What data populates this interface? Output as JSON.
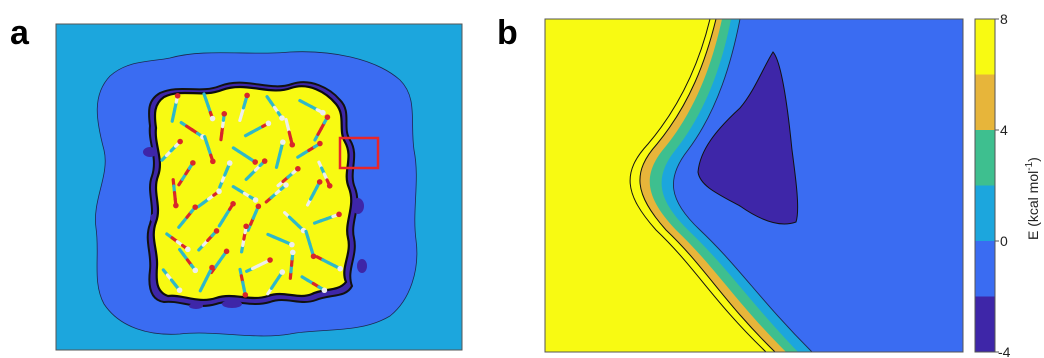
{
  "panels": {
    "a": {
      "letter": "a"
    },
    "b": {
      "letter": "b"
    }
  },
  "colorbar": {
    "ticks": [
      "8",
      "4",
      "0",
      "-4"
    ],
    "label_main": "E (kcal mol",
    "label_sup": "-1",
    "label_close": ")"
  },
  "colors": {
    "level_4": "#3e26a8",
    "level_3": "#3a6cf2",
    "level_2": "#1ca6dd",
    "level_1": "#3ebf8f",
    "level_0": "#e7b53a",
    "level_top": "#f8fa12",
    "highlight_box": "#e8262a"
  }
}
